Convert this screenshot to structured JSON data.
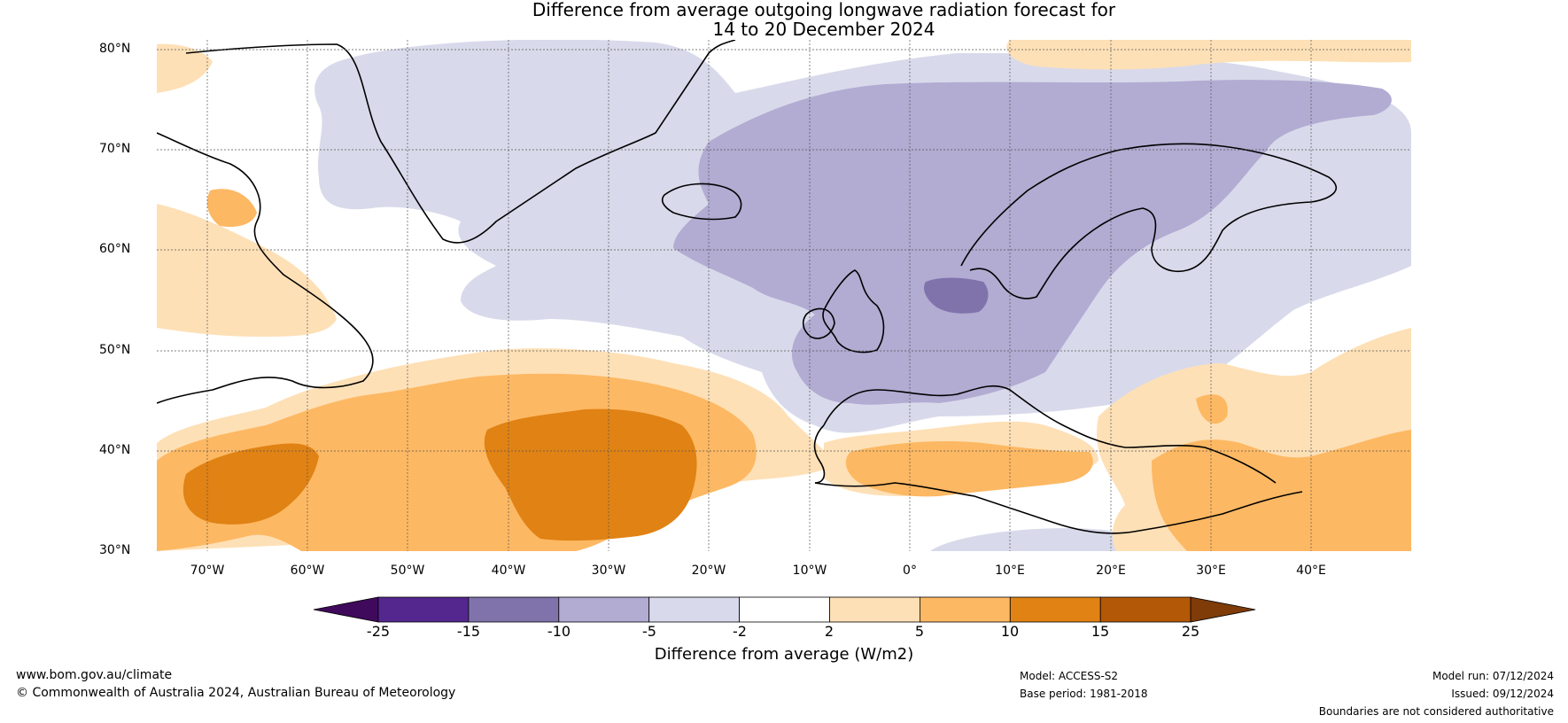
{
  "title_line1": "Difference from average outgoing longwave radiation forecast for",
  "title_line2": "14 to 20 December 2024",
  "map": {
    "lat_labels": [
      "80°N",
      "70°N",
      "60°N",
      "50°N",
      "40°N",
      "30°N"
    ],
    "lon_labels": [
      "70°W",
      "60°W",
      "50°W",
      "40°W",
      "30°W",
      "20°W",
      "10°W",
      "0°",
      "10°E",
      "20°E",
      "30°E",
      "40°E"
    ],
    "lat_range": [
      30,
      81
    ],
    "lon_range": [
      -75,
      50
    ]
  },
  "colorbar": {
    "label": "Difference from average (W/m2)",
    "ticks": [
      "-25",
      "-15",
      "-10",
      "-5",
      "-2",
      "2",
      "5",
      "10",
      "15",
      "25"
    ],
    "colors": [
      "#3f0a5c",
      "#54278f",
      "#8073ac",
      "#b2abd2",
      "#d8daeb",
      "#ffffff",
      "#fee0b6",
      "#fdb863",
      "#e08214",
      "#b35806",
      "#7f3b08"
    ]
  },
  "footer": {
    "website": "www.bom.gov.au/climate",
    "copyright": "© Commonwealth of Australia 2024, Australian Bureau of Meteorology",
    "model": "Model: ACCESS-S2",
    "base_period": "Base period: 1981-2018",
    "model_run": "Model run: 07/12/2024",
    "issued": "Issued: 09/12/2024",
    "disclaimer": "Boundaries are not considered authoritative"
  }
}
